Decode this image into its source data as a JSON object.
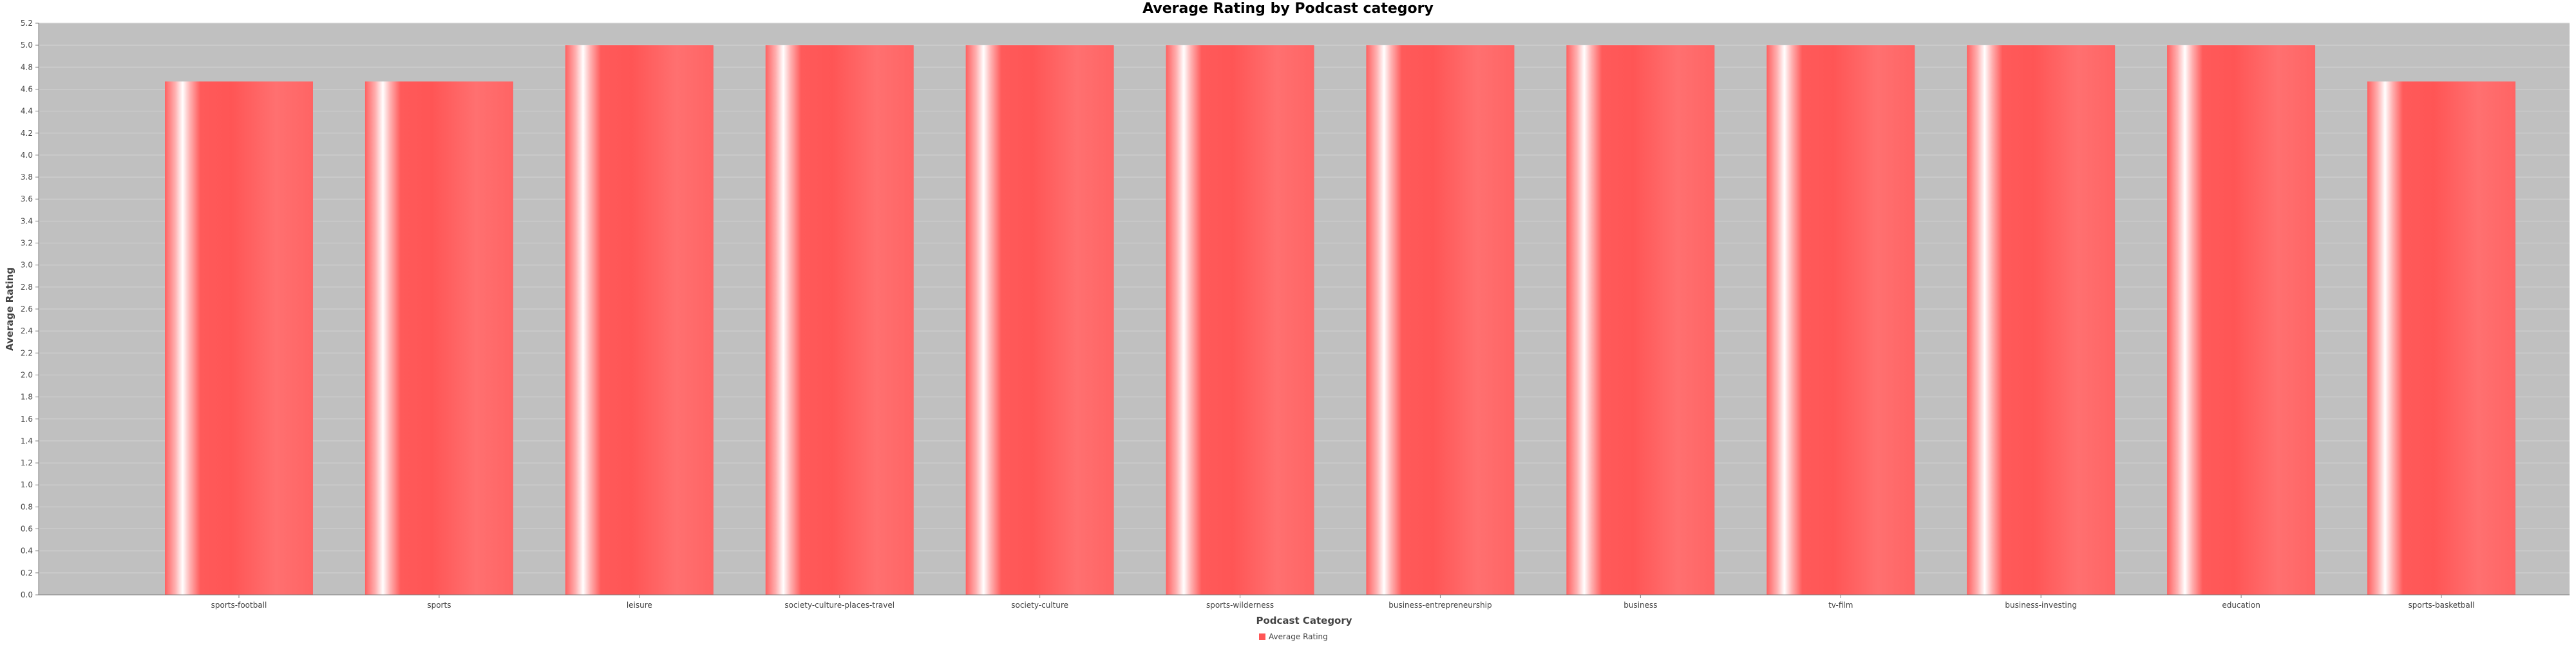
{
  "chart_data": {
    "type": "bar",
    "title": "Average Rating by Podcast category",
    "xlabel": "Podcast Category",
    "ylabel": "Average Rating",
    "ylim": [
      0,
      5.2
    ],
    "ytick_step": 0.2,
    "grid": true,
    "legend_position": "bottom",
    "categories": [
      "sports-football",
      "sports",
      "leisure",
      "society-culture-places-travel",
      "society-culture",
      "sports-wilderness",
      "business-entrepreneurship",
      "business",
      "tv-film",
      "business-investing",
      "education",
      "sports-basketball"
    ],
    "series": [
      {
        "name": "Average Rating",
        "color": "#ff5555",
        "values": [
          4.67,
          4.67,
          5.0,
          5.0,
          5.0,
          5.0,
          5.0,
          5.0,
          5.0,
          5.0,
          5.0,
          4.67
        ]
      }
    ],
    "colors": {
      "plot_background": "#c0c0c0",
      "gridline": "#d3d3d3",
      "axis": "#808080",
      "bar_base": "#ff5555",
      "bar_highlight": "#ffffff"
    }
  }
}
